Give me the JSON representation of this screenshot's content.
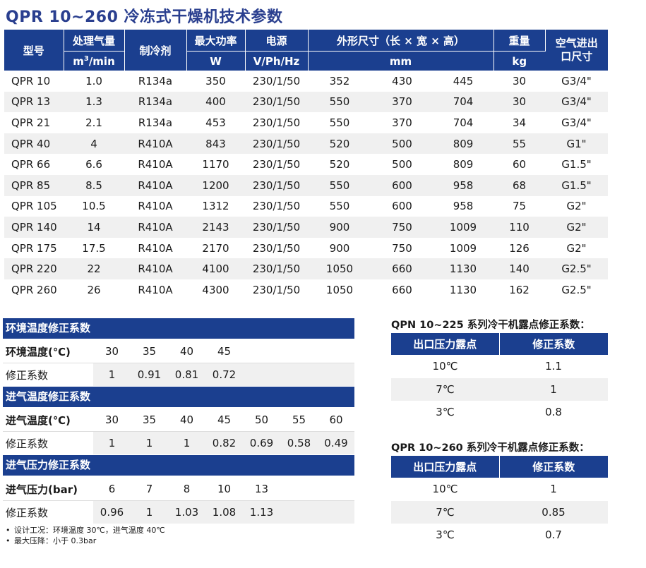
{
  "title": "QPR 10~260 冷冻式干燥机技术参数",
  "main_table": {
    "headers": {
      "model": "型号",
      "flow": "处理气量",
      "flow_unit_pre": "m",
      "flow_unit_sup": "3",
      "flow_unit_post": "/min",
      "refrigerant": "制冷剂",
      "power": "最大功率",
      "power_unit": "W",
      "supply": "电源",
      "supply_unit": "V/Ph/Hz",
      "dims": "外形尺寸（长 × 宽 × 高）",
      "dims_unit": "mm",
      "weight": "重量",
      "weight_unit": "kg",
      "port": "空气进出口尺寸"
    },
    "rows": [
      {
        "model": "QPR 10",
        "flow": "1.0",
        "ref": "R134a",
        "power": "350",
        "supply": "230/1/50",
        "l": "352",
        "w": "430",
        "h": "445",
        "weight": "30",
        "port": "G3/4\""
      },
      {
        "model": "QPR 13",
        "flow": "1.3",
        "ref": "R134a",
        "power": "400",
        "supply": "230/1/50",
        "l": "550",
        "w": "370",
        "h": "704",
        "weight": "30",
        "port": "G3/4\""
      },
      {
        "model": "QPR 21",
        "flow": "2.1",
        "ref": "R134a",
        "power": "453",
        "supply": "230/1/50",
        "l": "550",
        "w": "370",
        "h": "704",
        "weight": "34",
        "port": "G3/4\""
      },
      {
        "model": "QPR 40",
        "flow": "4",
        "ref": "R410A",
        "power": "843",
        "supply": "230/1/50",
        "l": "520",
        "w": "500",
        "h": "809",
        "weight": "55",
        "port": "G1\""
      },
      {
        "model": "QPR 66",
        "flow": "6.6",
        "ref": "R410A",
        "power": "1170",
        "supply": "230/1/50",
        "l": "520",
        "w": "500",
        "h": "809",
        "weight": "60",
        "port": "G1.5\""
      },
      {
        "model": "QPR 85",
        "flow": "8.5",
        "ref": "R410A",
        "power": "1200",
        "supply": "230/1/50",
        "l": "550",
        "w": "600",
        "h": "958",
        "weight": "68",
        "port": "G1.5\""
      },
      {
        "model": "QPR 105",
        "flow": "10.5",
        "ref": "R410A",
        "power": "1312",
        "supply": "230/1/50",
        "l": "550",
        "w": "600",
        "h": "958",
        "weight": "75",
        "port": "G2\""
      },
      {
        "model": "QPR 140",
        "flow": "14",
        "ref": "R410A",
        "power": "2143",
        "supply": "230/1/50",
        "l": "900",
        "w": "750",
        "h": "1009",
        "weight": "110",
        "port": "G2\""
      },
      {
        "model": "QPR 175",
        "flow": "17.5",
        "ref": "R410A",
        "power": "2170",
        "supply": "230/1/50",
        "l": "900",
        "w": "750",
        "h": "1009",
        "weight": "126",
        "port": "G2\""
      },
      {
        "model": "QPR 220",
        "flow": "22",
        "ref": "R410A",
        "power": "4100",
        "supply": "230/1/50",
        "l": "1050",
        "w": "660",
        "h": "1130",
        "weight": "140",
        "port": "G2.5\""
      },
      {
        "model": "QPR 260",
        "flow": "26",
        "ref": "R410A",
        "power": "4300",
        "supply": "230/1/50",
        "l": "1050",
        "w": "660",
        "h": "1130",
        "weight": "162",
        "port": "G2.5\""
      }
    ]
  },
  "ambient": {
    "header": "环境温度修正系数",
    "label": "环境温度(℃)",
    "values": [
      "30",
      "35",
      "40",
      "45"
    ],
    "factor_label": "修正系数",
    "factors": [
      "1",
      "0.91",
      "0.81",
      "0.72"
    ]
  },
  "inlet_temp": {
    "header": "进气温度修正系数",
    "label": "进气温度(℃)",
    "values": [
      "30",
      "35",
      "40",
      "45",
      "50",
      "55",
      "60"
    ],
    "factor_label": "修正系数",
    "factors": [
      "1",
      "1",
      "1",
      "0.82",
      "0.69",
      "0.58",
      "0.49"
    ]
  },
  "inlet_pressure": {
    "header": "进气压力修正系数",
    "label": "进气压力(bar)",
    "values": [
      "6",
      "7",
      "8",
      "10",
      "13"
    ],
    "factor_label": "修正系数",
    "factors": [
      "0.96",
      "1",
      "1.03",
      "1.08",
      "1.13"
    ]
  },
  "notes": [
    "设计工况：环境温度 30℃，进气温度 40℃",
    "最大压降：小于 0.3bar"
  ],
  "dew_qpn": {
    "title": "QPN 10~225 系列冷干机露点修正系数：",
    "col1": "出口压力露点",
    "col2": "修正系数",
    "rows": [
      {
        "dew": "10℃",
        "factor": "1.1"
      },
      {
        "dew": "7℃",
        "factor": "1"
      },
      {
        "dew": "3℃",
        "factor": "0.8"
      }
    ]
  },
  "dew_qpr": {
    "title": "QPR 10~260 系列冷干机露点修正系数：",
    "col1": "出口压力露点",
    "col2": "修正系数",
    "rows": [
      {
        "dew": "10℃",
        "factor": "1"
      },
      {
        "dew": "7℃",
        "factor": "0.85"
      },
      {
        "dew": "3℃",
        "factor": "0.7"
      }
    ]
  },
  "colors": {
    "header_bg": "#1b3f8f",
    "title": "#2a3f8f",
    "stripe": "#f0f0f0"
  }
}
